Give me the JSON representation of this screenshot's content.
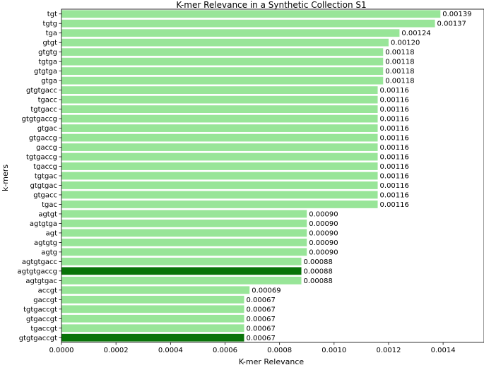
{
  "chart_data": {
    "type": "bar",
    "orientation": "horizontal",
    "title": "K-mer Relevance in a Synthetic Collection S1",
    "xlabel": "K-mer Relevance",
    "ylabel": "k-mers",
    "xlim": [
      0,
      0.00155
    ],
    "xticks": [
      "0.0000",
      "0.0002",
      "0.0004",
      "0.0006",
      "0.0008",
      "0.0010",
      "0.0012",
      "0.0014"
    ],
    "xtick_values": [
      0,
      0.0002,
      0.0004,
      0.0006,
      0.0008,
      0.001,
      0.0012,
      0.0014
    ],
    "grid": false,
    "colors": {
      "default": "#98e598",
      "highlight": "#087308"
    },
    "categories": [
      "tgt",
      "tgtg",
      "tga",
      "gtgt",
      "gtgtg",
      "tgtga",
      "gtgtga",
      "gtga",
      "gtgtgacc",
      "tgacc",
      "tgtgacc",
      "gtgtgaccg",
      "gtgac",
      "gtgaccg",
      "gaccg",
      "tgtgaccg",
      "tgaccg",
      "tgtgac",
      "gtgtgac",
      "gtgacc",
      "tgac",
      "agtgt",
      "agtgtga",
      "agt",
      "agtgtg",
      "agtg",
      "agtgtgacc",
      "agtgtgaccg",
      "agtgtgac",
      "accgt",
      "gaccgt",
      "tgtgaccgt",
      "gtgaccgt",
      "tgaccgt",
      "gtgtgaccgt"
    ],
    "values": [
      0.00139,
      0.00137,
      0.00124,
      0.0012,
      0.00118,
      0.00118,
      0.00118,
      0.00118,
      0.00116,
      0.00116,
      0.00116,
      0.00116,
      0.00116,
      0.00116,
      0.00116,
      0.00116,
      0.00116,
      0.00116,
      0.00116,
      0.00116,
      0.00116,
      0.0009,
      0.0009,
      0.0009,
      0.0009,
      0.0009,
      0.00088,
      0.00088,
      0.00088,
      0.00069,
      0.00067,
      0.00067,
      0.00067,
      0.00067,
      0.00067
    ],
    "labels": [
      "0.00139",
      "0.00137",
      "0.00124",
      "0.00120",
      "0.00118",
      "0.00118",
      "0.00118",
      "0.00118",
      "0.00116",
      "0.00116",
      "0.00116",
      "0.00116",
      "0.00116",
      "0.00116",
      "0.00116",
      "0.00116",
      "0.00116",
      "0.00116",
      "0.00116",
      "0.00116",
      "0.00116",
      "0.00090",
      "0.00090",
      "0.00090",
      "0.00090",
      "0.00090",
      "0.00088",
      "0.00088",
      "0.00088",
      "0.00069",
      "0.00067",
      "0.00067",
      "0.00067",
      "0.00067",
      "0.00067"
    ],
    "highlighted": [
      false,
      false,
      false,
      false,
      false,
      false,
      false,
      false,
      false,
      false,
      false,
      false,
      false,
      false,
      false,
      false,
      false,
      false,
      false,
      false,
      false,
      false,
      false,
      false,
      false,
      false,
      false,
      true,
      false,
      false,
      false,
      false,
      false,
      false,
      true
    ]
  }
}
